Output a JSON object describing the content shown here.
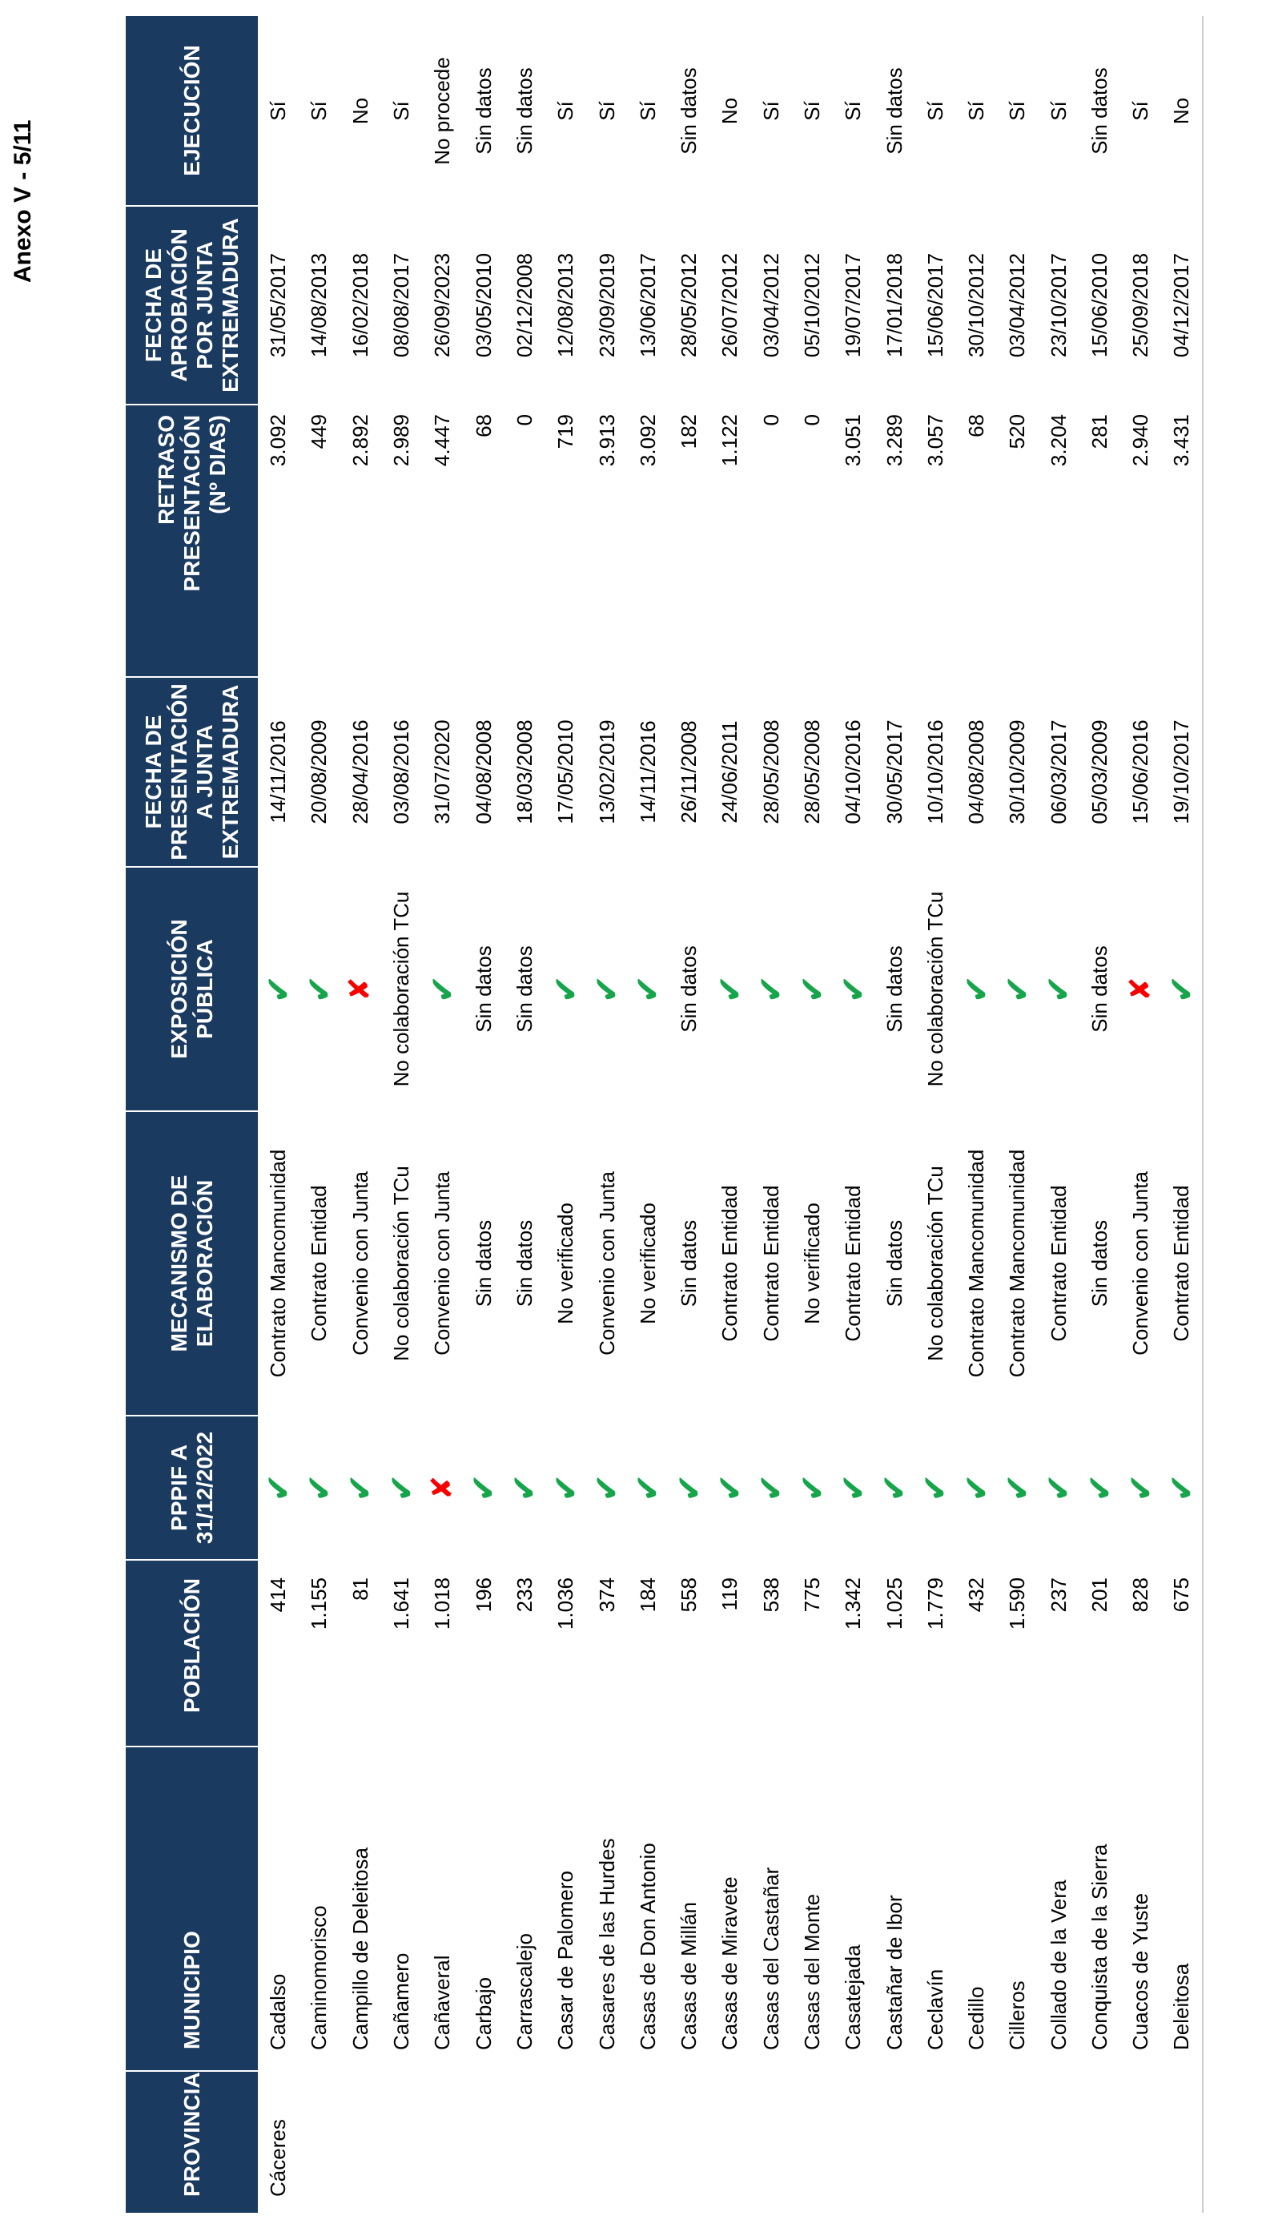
{
  "page": {
    "annex_label": "Anexo V - 5/11"
  },
  "colors": {
    "header_bg": "#1B3A5F",
    "header_text": "#FFFFFF",
    "check_green": "#16A54B",
    "cross_red": "#F80000",
    "body_text": "#000000",
    "table_border": "#C8CDD0"
  },
  "icons": {
    "check_icon": "✔",
    "cross_icon": "✘"
  },
  "table": {
    "headers": [
      {
        "id": "provincia",
        "label": "PROVINCIA"
      },
      {
        "id": "municipio",
        "label": "MUNICIPIO"
      },
      {
        "id": "poblacion",
        "label": "POBLACIÓN"
      },
      {
        "id": "pppif",
        "label": "PPPIF A\n31/12/2022"
      },
      {
        "id": "mecanismo",
        "label": "MECANISMO DE\nELABORACIÓN"
      },
      {
        "id": "exposicion",
        "label": "EXPOSICIÓN\nPÚBLICA"
      },
      {
        "id": "fpres",
        "label": "FECHA DE\nPRESENTACIÓN\nA JUNTA\nEXTREMADURA"
      },
      {
        "id": "retraso",
        "label": "RETRASO\nPRESENTACIÓN\n(Nº DIAS)"
      },
      {
        "id": "faprob",
        "label": "FECHA DE\nAPROBACIÓN\nPOR JUNTA\nEXTREMADURA"
      },
      {
        "id": "ejecucion",
        "label": "EJECUCIÓN"
      }
    ],
    "rows": [
      {
        "provincia": "Cáceres",
        "municipio": "Cadalso",
        "poblacion": "414",
        "pppif": "check",
        "mecanismo": "Contrato Mancomunidad",
        "exposicion": "check",
        "fpres": "14/11/2016",
        "retraso": "3.092",
        "faprob": "31/05/2017",
        "ejecucion": "Sí"
      },
      {
        "provincia": "",
        "municipio": "Caminomorisco",
        "poblacion": "1.155",
        "pppif": "check",
        "mecanismo": "Contrato Entidad",
        "exposicion": "check",
        "fpres": "20/08/2009",
        "retraso": "449",
        "faprob": "14/08/2013",
        "ejecucion": "Sí"
      },
      {
        "provincia": "",
        "municipio": "Campillo de Deleitosa",
        "poblacion": "81",
        "pppif": "check",
        "mecanismo": "Convenio con Junta",
        "exposicion": "cross",
        "fpres": "28/04/2016",
        "retraso": "2.892",
        "faprob": "16/02/2018",
        "ejecucion": "No"
      },
      {
        "provincia": "",
        "municipio": "Cañamero",
        "poblacion": "1.641",
        "pppif": "check",
        "mecanismo": "No colaboración TCu",
        "exposicion": "No colaboración TCu",
        "fpres": "03/08/2016",
        "retraso": "2.989",
        "faprob": "08/08/2017",
        "ejecucion": "Sí"
      },
      {
        "provincia": "",
        "municipio": "Cañaveral",
        "poblacion": "1.018",
        "pppif": "cross",
        "mecanismo": "Convenio con Junta",
        "exposicion": "check",
        "fpres": "31/07/2020",
        "retraso": "4.447",
        "faprob": "26/09/2023",
        "ejecucion": "No procede"
      },
      {
        "provincia": "",
        "municipio": "Carbajo",
        "poblacion": "196",
        "pppif": "check",
        "mecanismo": "Sin datos",
        "exposicion": "Sin datos",
        "fpres": "04/08/2008",
        "retraso": "68",
        "faprob": "03/05/2010",
        "ejecucion": "Sin datos"
      },
      {
        "provincia": "",
        "municipio": "Carrascalejo",
        "poblacion": "233",
        "pppif": "check",
        "mecanismo": "Sin datos",
        "exposicion": "Sin datos",
        "fpres": "18/03/2008",
        "retraso": "0",
        "faprob": "02/12/2008",
        "ejecucion": "Sin datos"
      },
      {
        "provincia": "",
        "municipio": "Casar de Palomero",
        "poblacion": "1.036",
        "pppif": "check",
        "mecanismo": "No verificado",
        "exposicion": "check",
        "fpres": "17/05/2010",
        "retraso": "719",
        "faprob": "12/08/2013",
        "ejecucion": "Sí"
      },
      {
        "provincia": "",
        "municipio": "Casares de las Hurdes",
        "poblacion": "374",
        "pppif": "check",
        "mecanismo": "Convenio con Junta",
        "exposicion": "check",
        "fpres": "13/02/2019",
        "retraso": "3.913",
        "faprob": "23/09/2019",
        "ejecucion": "Sí"
      },
      {
        "provincia": "",
        "municipio": "Casas de Don Antonio",
        "poblacion": "184",
        "pppif": "check",
        "mecanismo": "No verificado",
        "exposicion": "check",
        "fpres": "14/11/2016",
        "retraso": "3.092",
        "faprob": "13/06/2017",
        "ejecucion": "Sí"
      },
      {
        "provincia": "",
        "municipio": "Casas de Millán",
        "poblacion": "558",
        "pppif": "check",
        "mecanismo": "Sin datos",
        "exposicion": "Sin datos",
        "fpres": "26/11/2008",
        "retraso": "182",
        "faprob": "28/05/2012",
        "ejecucion": "Sin datos"
      },
      {
        "provincia": "",
        "municipio": "Casas de Miravete",
        "poblacion": "119",
        "pppif": "check",
        "mecanismo": "Contrato Entidad",
        "exposicion": "check",
        "fpres": "24/06/2011",
        "retraso": "1.122",
        "faprob": "26/07/2012",
        "ejecucion": "No"
      },
      {
        "provincia": "",
        "municipio": "Casas del Castañar",
        "poblacion": "538",
        "pppif": "check",
        "mecanismo": "Contrato Entidad",
        "exposicion": "check",
        "fpres": "28/05/2008",
        "retraso": "0",
        "faprob": "03/04/2012",
        "ejecucion": "Sí"
      },
      {
        "provincia": "",
        "municipio": "Casas del Monte",
        "poblacion": "775",
        "pppif": "check",
        "mecanismo": "No verificado",
        "exposicion": "check",
        "fpres": "28/05/2008",
        "retraso": "0",
        "faprob": "05/10/2012",
        "ejecucion": "Sí"
      },
      {
        "provincia": "",
        "municipio": "Casatejada",
        "poblacion": "1.342",
        "pppif": "check",
        "mecanismo": "Contrato Entidad",
        "exposicion": "check",
        "fpres": "04/10/2016",
        "retraso": "3.051",
        "faprob": "19/07/2017",
        "ejecucion": "Sí"
      },
      {
        "provincia": "",
        "municipio": "Castañar de Ibor",
        "poblacion": "1.025",
        "pppif": "check",
        "mecanismo": "Sin datos",
        "exposicion": "Sin datos",
        "fpres": "30/05/2017",
        "retraso": "3.289",
        "faprob": "17/01/2018",
        "ejecucion": "Sin datos"
      },
      {
        "provincia": "",
        "municipio": "Ceclavín",
        "poblacion": "1.779",
        "pppif": "check",
        "mecanismo": "No colaboración TCu",
        "exposicion": "No colaboración TCu",
        "fpres": "10/10/2016",
        "retraso": "3.057",
        "faprob": "15/06/2017",
        "ejecucion": "Sí"
      },
      {
        "provincia": "",
        "municipio": "Cedillo",
        "poblacion": "432",
        "pppif": "check",
        "mecanismo": "Contrato Mancomunidad",
        "exposicion": "check",
        "fpres": "04/08/2008",
        "retraso": "68",
        "faprob": "30/10/2012",
        "ejecucion": "Sí"
      },
      {
        "provincia": "",
        "municipio": "Cilleros",
        "poblacion": "1.590",
        "pppif": "check",
        "mecanismo": "Contrato Mancomunidad",
        "exposicion": "check",
        "fpres": "30/10/2009",
        "retraso": "520",
        "faprob": "03/04/2012",
        "ejecucion": "Sí"
      },
      {
        "provincia": "",
        "municipio": "Collado de la Vera",
        "poblacion": "237",
        "pppif": "check",
        "mecanismo": "Contrato Entidad",
        "exposicion": "check",
        "fpres": "06/03/2017",
        "retraso": "3.204",
        "faprob": "23/10/2017",
        "ejecucion": "Sí"
      },
      {
        "provincia": "",
        "municipio": "Conquista de la Sierra",
        "poblacion": "201",
        "pppif": "check",
        "mecanismo": "Sin datos",
        "exposicion": "Sin datos",
        "fpres": "05/03/2009",
        "retraso": "281",
        "faprob": "15/06/2010",
        "ejecucion": "Sin datos"
      },
      {
        "provincia": "",
        "municipio": "Cuacos de Yuste",
        "poblacion": "828",
        "pppif": "check",
        "mecanismo": "Convenio con Junta",
        "exposicion": "cross",
        "fpres": "15/06/2016",
        "retraso": "2.940",
        "faprob": "25/09/2018",
        "ejecucion": "Sí"
      },
      {
        "provincia": "",
        "municipio": "Deleitosa",
        "poblacion": "675",
        "pppif": "check",
        "mecanismo": "Contrato Entidad",
        "exposicion": "check",
        "fpres": "19/10/2017",
        "retraso": "3.431",
        "faprob": "04/12/2017",
        "ejecucion": "No"
      }
    ]
  }
}
